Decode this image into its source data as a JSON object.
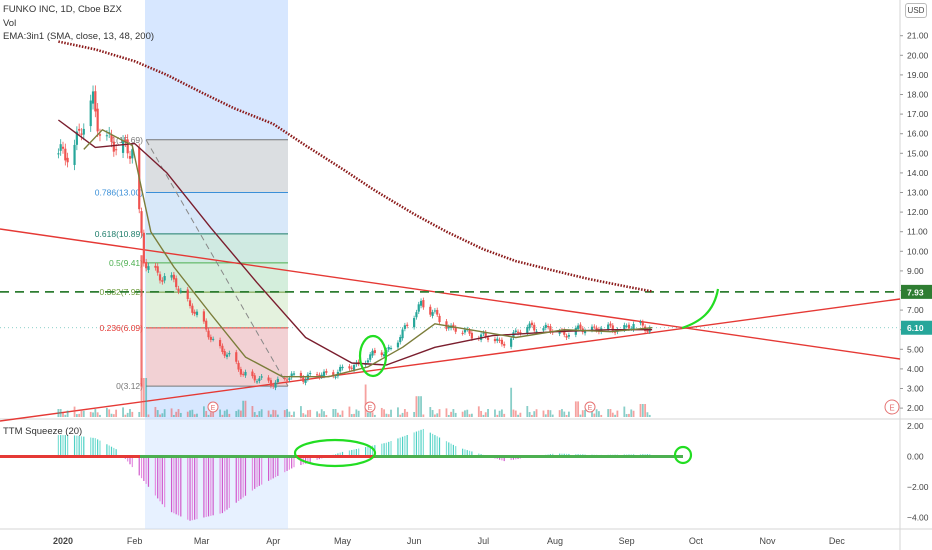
{
  "legend": {
    "title": "FUNKO INC, 1D, Cboe BZX",
    "vol": "Vol",
    "ema": "EMA:3in1 (SMA, close, 13, 48, 200)",
    "squeeze": "TTM Squeeze (20)"
  },
  "currency": "USD",
  "colors": {
    "up": "#26a69a",
    "down": "#ef5350",
    "ma13": "#7b7d3a",
    "ma48": "#7a1e2e",
    "ma200": "#8b1a1a",
    "trend": "#e53935",
    "dashed_level": "#2e7d32",
    "annotation": "#22dd22",
    "shade": "#c9dfff"
  },
  "chart_data": [
    {
      "type": "candlestick",
      "title": "FUNKO INC, 1D, Cboe BZX",
      "x_tick_labels": [
        "2020",
        "Feb",
        "Mar",
        "Apr",
        "May",
        "Jun",
        "Jul",
        "Aug",
        "Sep",
        "Oct",
        "Nov",
        "Dec"
      ],
      "y_tick_labels": [
        "21.00",
        "20.00",
        "19.00",
        "18.00",
        "17.00",
        "16.00",
        "15.00",
        "14.00",
        "13.00",
        "12.00",
        "11.00",
        "10.00",
        "9.00",
        "8.00",
        "7.00",
        "6.00",
        "5.00",
        "4.00",
        "3.00",
        "2.00"
      ],
      "ylim": [
        1.4,
        21.8
      ],
      "price_labels": [
        {
          "label": "7.93",
          "value": 7.93,
          "color": "#2e7d32"
        },
        {
          "label": "6.10",
          "value": 6.1,
          "color": "#26a69a"
        }
      ],
      "fibonacci": [
        {
          "label": "1(15.69)",
          "value": 15.69,
          "color": "#777777"
        },
        {
          "label": "0.786(13.00)",
          "value": 13.0,
          "color": "#3a8fd8"
        },
        {
          "label": "0.618(10.89)",
          "value": 10.89,
          "color": "#1e7d6a"
        },
        {
          "label": "0.5(9.41)",
          "value": 9.41,
          "color": "#4caf50"
        },
        {
          "label": "0.382(7.92)",
          "value": 7.92,
          "color": "#6a9a3a"
        },
        {
          "label": "0.236(6.09)",
          "value": 6.09,
          "color": "#e53935"
        },
        {
          "label": "0(3.12)",
          "value": 3.12,
          "color": "#777777"
        }
      ],
      "close_series": [
        {
          "date": "2019-12-30",
          "close": 14.8
        },
        {
          "date": "2020-01-05",
          "close": 15.3
        },
        {
          "date": "2020-01-10",
          "close": 16.4
        },
        {
          "date": "2020-01-14",
          "close": 17.6
        },
        {
          "date": "2020-01-18",
          "close": 16.0
        },
        {
          "date": "2020-01-24",
          "close": 15.2
        },
        {
          "date": "2020-01-31",
          "close": 15.4
        },
        {
          "date": "2020-02-05",
          "close": 9.4
        },
        {
          "date": "2020-02-12",
          "close": 8.8
        },
        {
          "date": "2020-02-19",
          "close": 8.3
        },
        {
          "date": "2020-02-26",
          "close": 7.1
        },
        {
          "date": "2020-03-05",
          "close": 5.6
        },
        {
          "date": "2020-03-12",
          "close": 4.7
        },
        {
          "date": "2020-03-19",
          "close": 3.8
        },
        {
          "date": "2020-03-26",
          "close": 3.4
        },
        {
          "date": "2020-04-02",
          "close": 3.3
        },
        {
          "date": "2020-04-09",
          "close": 3.6
        },
        {
          "date": "2020-04-16",
          "close": 3.6
        },
        {
          "date": "2020-04-23",
          "close": 3.7
        },
        {
          "date": "2020-04-30",
          "close": 3.9
        },
        {
          "date": "2020-05-07",
          "close": 4.2
        },
        {
          "date": "2020-05-12",
          "close": 4.6
        },
        {
          "date": "2020-05-20",
          "close": 4.9
        },
        {
          "date": "2020-05-27",
          "close": 5.8
        },
        {
          "date": "2020-06-04",
          "close": 7.4
        },
        {
          "date": "2020-06-10",
          "close": 6.7
        },
        {
          "date": "2020-06-17",
          "close": 6.1
        },
        {
          "date": "2020-06-24",
          "close": 5.8
        },
        {
          "date": "2020-07-01",
          "close": 5.7
        },
        {
          "date": "2020-07-08",
          "close": 5.3
        },
        {
          "date": "2020-07-15",
          "close": 5.8
        },
        {
          "date": "2020-07-22",
          "close": 6.2
        },
        {
          "date": "2020-07-29",
          "close": 6.0
        },
        {
          "date": "2020-08-05",
          "close": 5.8
        },
        {
          "date": "2020-08-12",
          "close": 6.0
        },
        {
          "date": "2020-08-19",
          "close": 6.1
        },
        {
          "date": "2020-08-26",
          "close": 6.0
        },
        {
          "date": "2020-09-02",
          "close": 6.2
        },
        {
          "date": "2020-09-09",
          "close": 6.1
        }
      ],
      "ma13": [
        {
          "date": "2020-01-10",
          "value": 15.2
        },
        {
          "date": "2020-01-18",
          "value": 16.2
        },
        {
          "date": "2020-01-31",
          "value": 15.4
        },
        {
          "date": "2020-02-08",
          "value": 11.0
        },
        {
          "date": "2020-02-18",
          "value": 9.2
        },
        {
          "date": "2020-03-05",
          "value": 6.8
        },
        {
          "date": "2020-03-20",
          "value": 4.6
        },
        {
          "date": "2020-04-05",
          "value": 3.6
        },
        {
          "date": "2020-04-25",
          "value": 3.6
        },
        {
          "date": "2020-05-12",
          "value": 4.1
        },
        {
          "date": "2020-05-27",
          "value": 5.1
        },
        {
          "date": "2020-06-10",
          "value": 6.3
        },
        {
          "date": "2020-06-25",
          "value": 6.0
        },
        {
          "date": "2020-07-15",
          "value": 5.6
        },
        {
          "date": "2020-08-05",
          "value": 6.0
        },
        {
          "date": "2020-08-25",
          "value": 5.9
        },
        {
          "date": "2020-09-12",
          "value": 6.1
        }
      ],
      "ma48": [
        {
          "date": "2019-12-30",
          "value": 16.7
        },
        {
          "date": "2020-01-15",
          "value": 15.3
        },
        {
          "date": "2020-02-01",
          "value": 15.5
        },
        {
          "date": "2020-02-15",
          "value": 14.0
        },
        {
          "date": "2020-03-05",
          "value": 11.2
        },
        {
          "date": "2020-03-25",
          "value": 8.4
        },
        {
          "date": "2020-04-15",
          "value": 5.6
        },
        {
          "date": "2020-05-05",
          "value": 4.3
        },
        {
          "date": "2020-05-20",
          "value": 4.2
        },
        {
          "date": "2020-06-10",
          "value": 5.1
        },
        {
          "date": "2020-07-05",
          "value": 5.7
        },
        {
          "date": "2020-08-01",
          "value": 5.9
        },
        {
          "date": "2020-08-25",
          "value": 6.0
        },
        {
          "date": "2020-09-12",
          "value": 6.0
        }
      ],
      "ma200": [
        {
          "date": "2019-12-30",
          "value": 20.7
        },
        {
          "date": "2020-01-15",
          "value": 20.3
        },
        {
          "date": "2020-02-01",
          "value": 19.7
        },
        {
          "date": "2020-02-15",
          "value": 19.0
        },
        {
          "date": "2020-03-01",
          "value": 18.1
        },
        {
          "date": "2020-03-15",
          "value": 17.3
        },
        {
          "date": "2020-04-01",
          "value": 16.5
        },
        {
          "date": "2020-04-15",
          "value": 15.4
        },
        {
          "date": "2020-05-01",
          "value": 14.2
        },
        {
          "date": "2020-05-15",
          "value": 13.1
        },
        {
          "date": "2020-06-01",
          "value": 11.9
        },
        {
          "date": "2020-06-15",
          "value": 11.0
        },
        {
          "date": "2020-07-01",
          "value": 10.1
        },
        {
          "date": "2020-07-15",
          "value": 9.5
        },
        {
          "date": "2020-08-01",
          "value": 9.0
        },
        {
          "date": "2020-08-15",
          "value": 8.6
        },
        {
          "date": "2020-09-01",
          "value": 8.2
        },
        {
          "date": "2020-09-12",
          "value": 7.95
        }
      ],
      "volume": [
        {
          "date": "2020-02-05",
          "value": 6.0
        },
        {
          "date": "2020-03-20",
          "value": 2.5
        },
        {
          "date": "2020-05-10",
          "value": 5.0
        },
        {
          "date": "2020-06-03",
          "value": 3.2
        },
        {
          "date": "2020-07-12",
          "value": 4.5
        },
        {
          "date": "2020-08-10",
          "value": 2.4
        },
        {
          "date": "2020-09-08",
          "value": 2.0
        }
      ]
    },
    {
      "type": "bar",
      "title": "TTM Squeeze (20)",
      "y_tick_labels": [
        "2.00",
        "0.00",
        "−2.00",
        "−4.00"
      ],
      "ylim": [
        -4.5,
        2.2
      ],
      "histogram": [
        {
          "date": "2020-01-05",
          "value": 1.4
        },
        {
          "date": "2020-01-15",
          "value": 1.2
        },
        {
          "date": "2020-01-25",
          "value": 0.4
        },
        {
          "date": "2020-02-05",
          "value": -1.6
        },
        {
          "date": "2020-02-15",
          "value": -3.5
        },
        {
          "date": "2020-02-25",
          "value": -4.2
        },
        {
          "date": "2020-03-10",
          "value": -3.7
        },
        {
          "date": "2020-03-25",
          "value": -2.0
        },
        {
          "date": "2020-04-10",
          "value": -0.7
        },
        {
          "date": "2020-05-01",
          "value": 0.3
        },
        {
          "date": "2020-05-20",
          "value": 0.9
        },
        {
          "date": "2020-06-05",
          "value": 1.8
        },
        {
          "date": "2020-06-20",
          "value": 0.6
        },
        {
          "date": "2020-07-10",
          "value": -0.3
        },
        {
          "date": "2020-08-01",
          "value": 0.2
        },
        {
          "date": "2020-08-20",
          "value": 0.1
        },
        {
          "date": "2020-09-10",
          "value": 0.15
        }
      ]
    }
  ]
}
